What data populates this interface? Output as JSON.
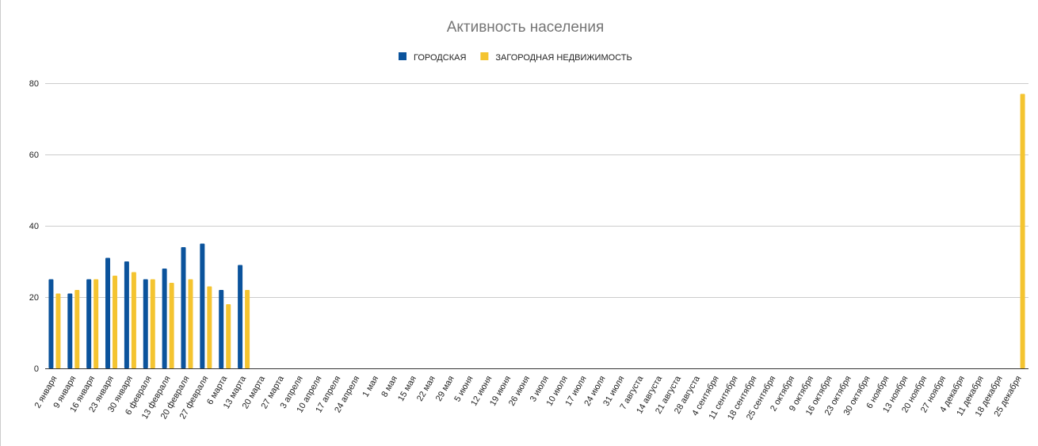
{
  "chart_data": {
    "type": "bar",
    "title": "Активность населения",
    "categories": [
      "2 января",
      "9 января",
      "16 января",
      "23 января",
      "30 января",
      "6 февраля",
      "13 февраля",
      "20 февраля",
      "27 февраля",
      "6 марта",
      "13 марта",
      "20 марта",
      "27 марта",
      "3 апреля",
      "10 апреля",
      "17 апреля",
      "24 апреля",
      "1 мая",
      "8 мая",
      "15 мая",
      "22 мая",
      "29 мая",
      "5 июня",
      "12 июня",
      "19 июня",
      "26 июня",
      "3 июля",
      "10 июля",
      "17 июля",
      "24 июля",
      "31 июля",
      "7 августа",
      "14 августа",
      "21 августа",
      "28 августа",
      "4 сентября",
      "11 сентября",
      "18 сентября",
      "25 сентября",
      "2 октября",
      "9 октября",
      "16 октября",
      "23 октября",
      "30 октября",
      "6 ноября",
      "13 ноября",
      "20 ноября",
      "27 ноября",
      "4 декабря",
      "11 декабря",
      "18 декабря",
      "25 декабря"
    ],
    "series": [
      {
        "name": "ГОРОДСКАЯ",
        "color": "#0b539c",
        "values": [
          25,
          21,
          25,
          31,
          30,
          25,
          28,
          34,
          35,
          22,
          29,
          null,
          null,
          null,
          null,
          null,
          null,
          null,
          null,
          null,
          null,
          null,
          null,
          null,
          null,
          null,
          null,
          null,
          null,
          null,
          null,
          null,
          null,
          null,
          null,
          null,
          null,
          null,
          null,
          null,
          null,
          null,
          null,
          null,
          null,
          null,
          null,
          null,
          null,
          null,
          null,
          null
        ]
      },
      {
        "name": "ЗАГОРОДНАЯ НЕДВИЖИМОСТЬ",
        "color": "#f4c430",
        "values": [
          21,
          22,
          25,
          26,
          27,
          25,
          24,
          25,
          23,
          18,
          22,
          null,
          null,
          null,
          null,
          null,
          null,
          null,
          null,
          null,
          null,
          null,
          null,
          null,
          null,
          null,
          null,
          null,
          null,
          null,
          null,
          null,
          null,
          null,
          null,
          null,
          null,
          null,
          null,
          null,
          null,
          null,
          null,
          null,
          null,
          null,
          null,
          null,
          null,
          null,
          null,
          77
        ]
      }
    ],
    "ylim": [
      0,
      80
    ],
    "yticks": [
      0,
      20,
      40,
      60,
      80
    ],
    "grid": true,
    "legend": "top"
  }
}
